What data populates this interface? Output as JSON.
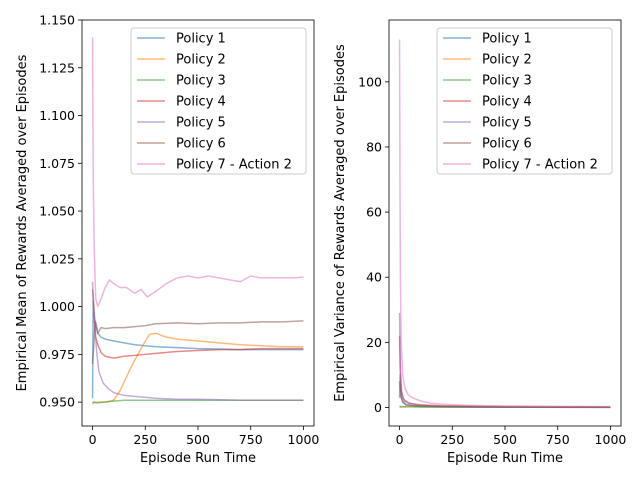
{
  "chart_data": [
    {
      "type": "line",
      "title": "",
      "xlabel": "Episode Run Time",
      "ylabel": "Empirical Mean of Rewards Averaged over Episodes",
      "xlim": [
        -50,
        1050
      ],
      "ylim": [
        0.9375,
        1.15
      ],
      "xticks": [
        0,
        250,
        500,
        750,
        1000
      ],
      "yticks": [
        0.95,
        0.975,
        1.0,
        1.025,
        1.05,
        1.075,
        1.1,
        1.125,
        1.15
      ],
      "ytick_labels": [
        "0.950",
        "0.975",
        "1.000",
        "1.025",
        "1.050",
        "1.075",
        "1.100",
        "1.125",
        "1.150"
      ],
      "legend_position": "top-right",
      "series": [
        {
          "name": "Policy 1",
          "color": "#1f77b4",
          "points": [
            [
              0,
              0.952
            ],
            [
              3,
              1.003
            ],
            [
              8,
              0.996
            ],
            [
              15,
              0.99
            ],
            [
              25,
              0.986
            ],
            [
              40,
              0.984
            ],
            [
              60,
              0.983
            ],
            [
              100,
              0.982
            ],
            [
              150,
              0.981
            ],
            [
              200,
              0.98
            ],
            [
              250,
              0.9795
            ],
            [
              300,
              0.979
            ],
            [
              400,
              0.9785
            ],
            [
              500,
              0.978
            ],
            [
              600,
              0.9778
            ],
            [
              700,
              0.9775
            ],
            [
              800,
              0.9775
            ],
            [
              900,
              0.9775
            ],
            [
              1000,
              0.9775
            ]
          ]
        },
        {
          "name": "Policy 2",
          "color": "#ff7f0e",
          "points": [
            [
              0,
              0.95
            ],
            [
              20,
              0.95
            ],
            [
              60,
              0.95
            ],
            [
              100,
              0.951
            ],
            [
              130,
              0.956
            ],
            [
              160,
              0.963
            ],
            [
              200,
              0.972
            ],
            [
              240,
              0.98
            ],
            [
              270,
              0.9855
            ],
            [
              300,
              0.986
            ],
            [
              350,
              0.984
            ],
            [
              400,
              0.983
            ],
            [
              500,
              0.982
            ],
            [
              600,
              0.981
            ],
            [
              700,
              0.98
            ],
            [
              800,
              0.9795
            ],
            [
              900,
              0.979
            ],
            [
              1000,
              0.979
            ]
          ]
        },
        {
          "name": "Policy 3",
          "color": "#2ca02c",
          "points": [
            [
              0,
              0.949
            ],
            [
              5,
              0.95
            ],
            [
              20,
              0.9495
            ],
            [
              50,
              0.95
            ],
            [
              100,
              0.9505
            ],
            [
              150,
              0.951
            ],
            [
              200,
              0.951
            ],
            [
              300,
              0.951
            ],
            [
              500,
              0.951
            ],
            [
              700,
              0.951
            ],
            [
              900,
              0.951
            ],
            [
              1000,
              0.951
            ]
          ]
        },
        {
          "name": "Policy 4",
          "color": "#d62728",
          "points": [
            [
              0,
              1.009
            ],
            [
              3,
              1.006
            ],
            [
              8,
              0.994
            ],
            [
              15,
              0.984
            ],
            [
              25,
              0.98
            ],
            [
              40,
              0.976
            ],
            [
              60,
              0.974
            ],
            [
              100,
              0.973
            ],
            [
              150,
              0.974
            ],
            [
              200,
              0.9745
            ],
            [
              250,
              0.975
            ],
            [
              300,
              0.9755
            ],
            [
              400,
              0.9765
            ],
            [
              500,
              0.977
            ],
            [
              600,
              0.9775
            ],
            [
              700,
              0.9775
            ],
            [
              800,
              0.978
            ],
            [
              900,
              0.978
            ],
            [
              1000,
              0.978
            ]
          ]
        },
        {
          "name": "Policy 5",
          "color": "#9467bd",
          "points": [
            [
              0,
              1.013
            ],
            [
              2,
              1.005
            ],
            [
              5,
              0.998
            ],
            [
              10,
              0.99
            ],
            [
              20,
              0.976
            ],
            [
              30,
              0.966
            ],
            [
              50,
              0.96
            ],
            [
              75,
              0.957
            ],
            [
              100,
              0.955
            ],
            [
              150,
              0.9535
            ],
            [
              200,
              0.953
            ],
            [
              300,
              0.952
            ],
            [
              400,
              0.9515
            ],
            [
              500,
              0.9515
            ],
            [
              700,
              0.951
            ],
            [
              1000,
              0.951
            ]
          ]
        },
        {
          "name": "Policy 6",
          "color": "#8c564b",
          "points": [
            [
              0,
              0.97
            ],
            [
              5,
              0.978
            ],
            [
              10,
              0.988
            ],
            [
              15,
              0.992
            ],
            [
              25,
              0.986
            ],
            [
              40,
              0.989
            ],
            [
              60,
              0.9885
            ],
            [
              100,
              0.989
            ],
            [
              150,
              0.989
            ],
            [
              200,
              0.9895
            ],
            [
              250,
              0.99
            ],
            [
              300,
              0.991
            ],
            [
              400,
              0.9915
            ],
            [
              500,
              0.991
            ],
            [
              600,
              0.9915
            ],
            [
              700,
              0.9915
            ],
            [
              800,
              0.992
            ],
            [
              900,
              0.992
            ],
            [
              1000,
              0.9925
            ]
          ]
        },
        {
          "name": "Policy 7 - Action 2",
          "color": "#e377c2",
          "points": [
            [
              0,
              1.141
            ],
            [
              2,
              1.09
            ],
            [
              4,
              1.06
            ],
            [
              8,
              1.03
            ],
            [
              15,
              1.004
            ],
            [
              25,
              1.0
            ],
            [
              40,
              1.004
            ],
            [
              60,
              1.01
            ],
            [
              80,
              1.014
            ],
            [
              100,
              1.012
            ],
            [
              130,
              1.01
            ],
            [
              160,
              1.01
            ],
            [
              200,
              1.007
            ],
            [
              230,
              1.009
            ],
            [
              260,
              1.005
            ],
            [
              300,
              1.008
            ],
            [
              350,
              1.012
            ],
            [
              400,
              1.015
            ],
            [
              450,
              1.016
            ],
            [
              500,
              1.015
            ],
            [
              550,
              1.016
            ],
            [
              600,
              1.015
            ],
            [
              650,
              1.014
            ],
            [
              700,
              1.013
            ],
            [
              750,
              1.016
            ],
            [
              800,
              1.015
            ],
            [
              850,
              1.015
            ],
            [
              900,
              1.015
            ],
            [
              950,
              1.015
            ],
            [
              1000,
              1.0155
            ]
          ]
        }
      ]
    },
    {
      "type": "line",
      "title": "",
      "xlabel": "Episode Run Time",
      "ylabel": "Empirical Variance of Rewards Averaged over Episodes",
      "xlim": [
        -50,
        1050
      ],
      "ylim": [
        -5.7,
        119.0
      ],
      "xticks": [
        0,
        250,
        500,
        750,
        1000
      ],
      "yticks": [
        0,
        20,
        40,
        60,
        80,
        100
      ],
      "ytick_labels": [
        "0",
        "20",
        "40",
        "60",
        "80",
        "100"
      ],
      "legend_position": "top-right",
      "series": [
        {
          "name": "Policy 1",
          "color": "#1f77b4",
          "points": [
            [
              0,
              3
            ],
            [
              3,
              10
            ],
            [
              8,
              3
            ],
            [
              15,
              1.5
            ],
            [
              30,
              0.8
            ],
            [
              60,
              0.5
            ],
            [
              100,
              0.3
            ],
            [
              200,
              0.2
            ],
            [
              400,
              0.1
            ],
            [
              700,
              0.05
            ],
            [
              1000,
              0.03
            ]
          ]
        },
        {
          "name": "Policy 2",
          "color": "#ff7f0e",
          "points": [
            [
              0,
              0
            ],
            [
              20,
              0.2
            ],
            [
              60,
              0.4
            ],
            [
              100,
              0.5
            ],
            [
              150,
              0.4
            ],
            [
              200,
              0.3
            ],
            [
              300,
              0.25
            ],
            [
              500,
              0.15
            ],
            [
              700,
              0.1
            ],
            [
              1000,
              0.08
            ]
          ]
        },
        {
          "name": "Policy 3",
          "color": "#2ca02c",
          "points": [
            [
              0,
              0.5
            ],
            [
              5,
              0.3
            ],
            [
              20,
              0.2
            ],
            [
              100,
              0.1
            ],
            [
              300,
              0.05
            ],
            [
              1000,
              0.02
            ]
          ]
        },
        {
          "name": "Policy 4",
          "color": "#d62728",
          "points": [
            [
              0,
              22
            ],
            [
              3,
              12
            ],
            [
              8,
              5
            ],
            [
              15,
              3
            ],
            [
              25,
              2
            ],
            [
              50,
              1.2
            ],
            [
              100,
              0.8
            ],
            [
              200,
              0.5
            ],
            [
              400,
              0.3
            ],
            [
              700,
              0.2
            ],
            [
              1000,
              0.15
            ]
          ]
        },
        {
          "name": "Policy 5",
          "color": "#9467bd",
          "points": [
            [
              0,
              29
            ],
            [
              2,
              20
            ],
            [
              5,
              10
            ],
            [
              10,
              5
            ],
            [
              20,
              2.5
            ],
            [
              40,
              1.5
            ],
            [
              80,
              0.8
            ],
            [
              150,
              0.4
            ],
            [
              300,
              0.2
            ],
            [
              600,
              0.1
            ],
            [
              1000,
              0.06
            ]
          ]
        },
        {
          "name": "Policy 6",
          "color": "#8c564b",
          "points": [
            [
              0,
              8
            ],
            [
              3,
              6
            ],
            [
              8,
              3
            ],
            [
              15,
              2
            ],
            [
              30,
              1
            ],
            [
              60,
              0.6
            ],
            [
              100,
              0.4
            ],
            [
              200,
              0.3
            ],
            [
              400,
              0.2
            ],
            [
              700,
              0.15
            ],
            [
              1000,
              0.1
            ]
          ]
        },
        {
          "name": "Policy 7 - Action 2",
          "color": "#e377c2",
          "points": [
            [
              0,
              113
            ],
            [
              2,
              70
            ],
            [
              4,
              40
            ],
            [
              8,
              20
            ],
            [
              15,
              10
            ],
            [
              25,
              6
            ],
            [
              40,
              4
            ],
            [
              60,
              3
            ],
            [
              100,
              2
            ],
            [
              150,
              1.3
            ],
            [
              200,
              1
            ],
            [
              300,
              0.7
            ],
            [
              400,
              0.55
            ],
            [
              500,
              0.45
            ],
            [
              700,
              0.35
            ],
            [
              1000,
              0.28
            ]
          ]
        }
      ]
    }
  ]
}
